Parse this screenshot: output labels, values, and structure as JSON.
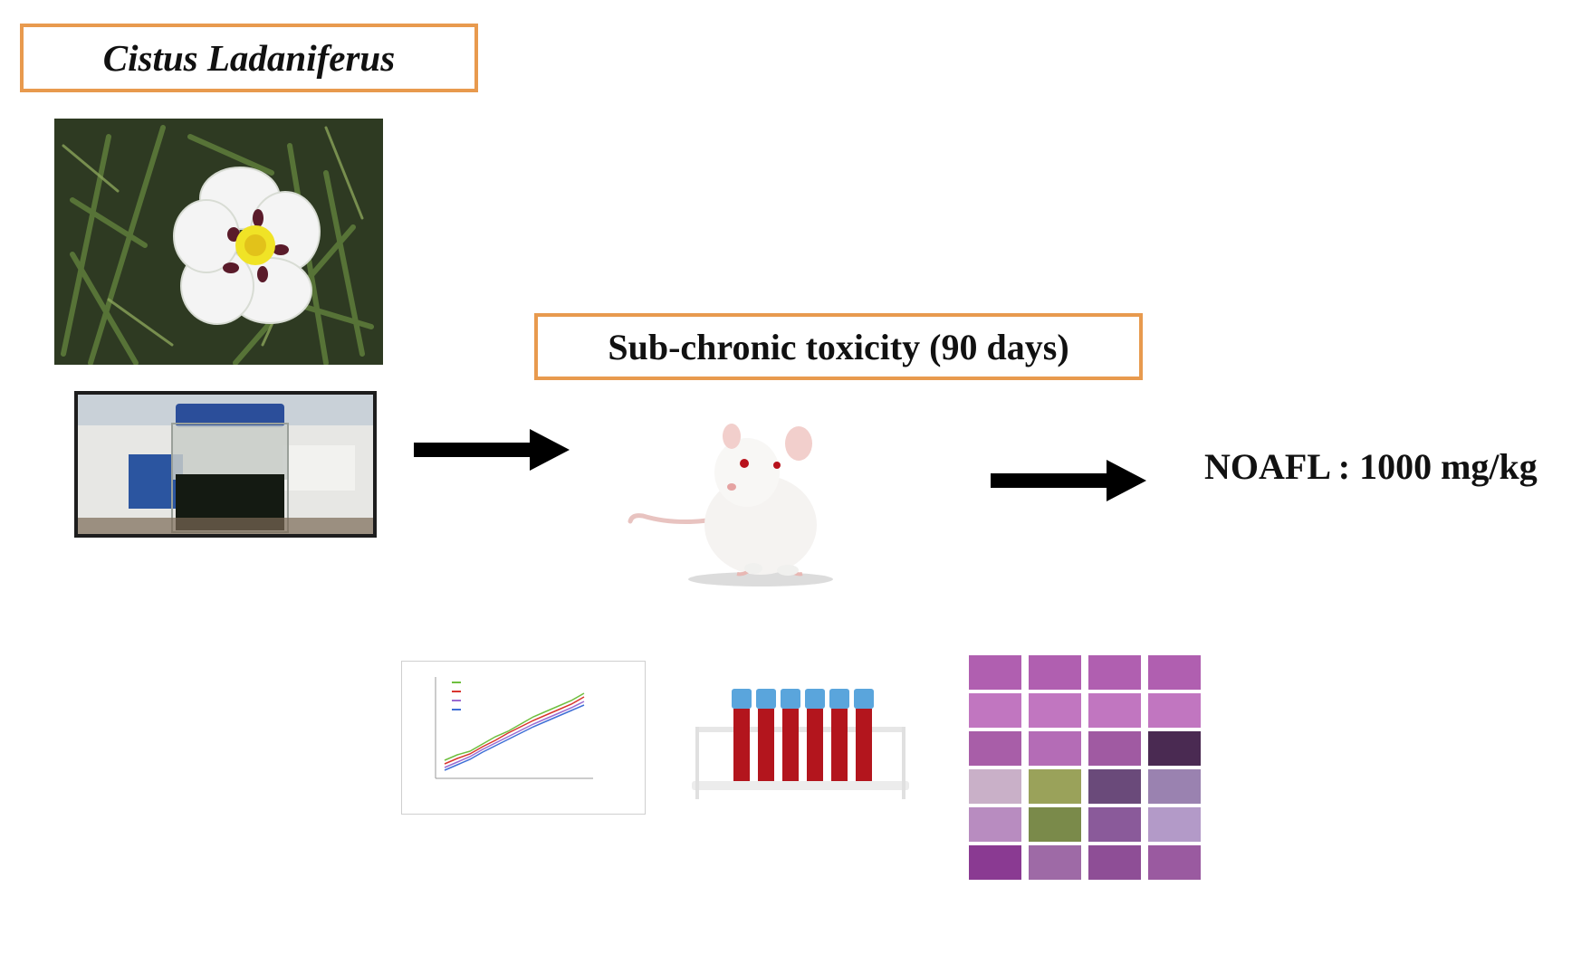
{
  "title": "Cistus Ladaniferus",
  "subtitle": "Sub-chronic toxicity (90 days)",
  "result": "NOAFL  : 1000 mg/kg",
  "colors": {
    "box_border": "#e89a4e",
    "arrow": "#000000",
    "histology": "#b05fb0",
    "blood": "#b3151d",
    "tube_cap": "#5aa5dc"
  },
  "icons": [
    "flower-photo",
    "extract-jar-photo",
    "rat-illustration",
    "growth-chart-thumbnail",
    "blood-tubes-photo",
    "histology-grid-photo"
  ]
}
